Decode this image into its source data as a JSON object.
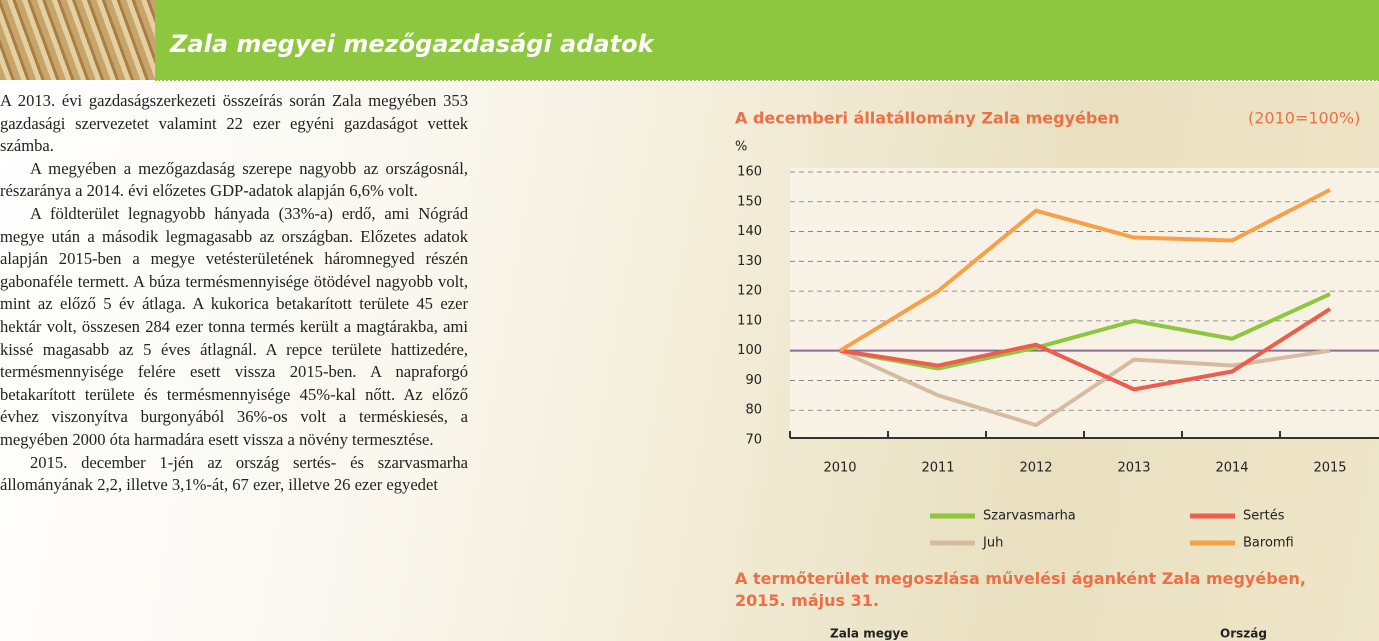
{
  "header": {
    "title": "Zala megyei mezőgazdasági adatok"
  },
  "paragraphs": [
    "A 2013. évi gazdaságszerkezeti összeírás során Zala megyében 353 gazdasági szervezetet valamint 22 ezer egyéni gazdaságot vettek számba.",
    "A megyében a mezőgazdaság szerepe nagyobb az országosnál, részaránya a 2014. évi előzetes GDP-adatok alapján 6,6% volt.",
    "A földterület legnagyobb hányada (33%-a) erdő, ami Nógrád megye után a második legmagasabb az országban. Előzetes adatok alapján 2015-ben a megye vetésterületének háromnegyed részén gabonaféle termett. A búza termésmennyisége ötödével nagyobb volt, mint az előző 5 év átlaga. A kukorica betakarított területe 45 ezer hektár volt, összesen 284 ezer tonna termés került a magtárakba, ami kissé magasabb az 5 éves átlagnál. A repce területe hattizedére, termésmennyisége felére esett vissza 2015-ben. A napraforgó betakarított területe és termésmennyisége 45%-kal nőtt. Az előző évhez viszonyítva burgonyából 36%-os volt a terméskiesés, a megyében 2000 óta harmadára esett vissza a növény termesztése.",
    "2015. december 1-jén az ország sertés- és szarvasmarha állományának 2,2, illetve 3,1%-át, 67 ezer, illetve 26 ezer egyedet"
  ],
  "chart_data": {
    "type": "line",
    "title": "A decemberi állatállomány Zala megyében",
    "subtitle": "(2010=100%)",
    "y_label": "%",
    "categories": [
      "2010",
      "2011",
      "2012",
      "2013",
      "2014",
      "2015"
    ],
    "series": [
      {
        "name": "Szarvasmarha",
        "color": "#8dc63f",
        "values": [
          100,
          94,
          101,
          110,
          104,
          119
        ]
      },
      {
        "name": "Sertés",
        "color": "#ef5b4c",
        "values": [
          100,
          95,
          102,
          87,
          93,
          114
        ]
      },
      {
        "name": "Juh",
        "color": "#d6bba3",
        "values": [
          100,
          85,
          75,
          97,
          95,
          100
        ]
      },
      {
        "name": "Baromfi",
        "color": "#f7a04a",
        "values": [
          100,
          120,
          147,
          138,
          137,
          154
        ]
      }
    ],
    "reference_line": 100,
    "ylim": [
      70,
      160
    ],
    "yticks": [
      70,
      80,
      90,
      100,
      110,
      120,
      130,
      140,
      150,
      160
    ],
    "grid": true
  },
  "second_chart": {
    "title": "A termőterület megoszlása művelési áganként Zala megyében, 2015. május 31.",
    "labels": [
      "Zala megye",
      "Ország"
    ]
  }
}
